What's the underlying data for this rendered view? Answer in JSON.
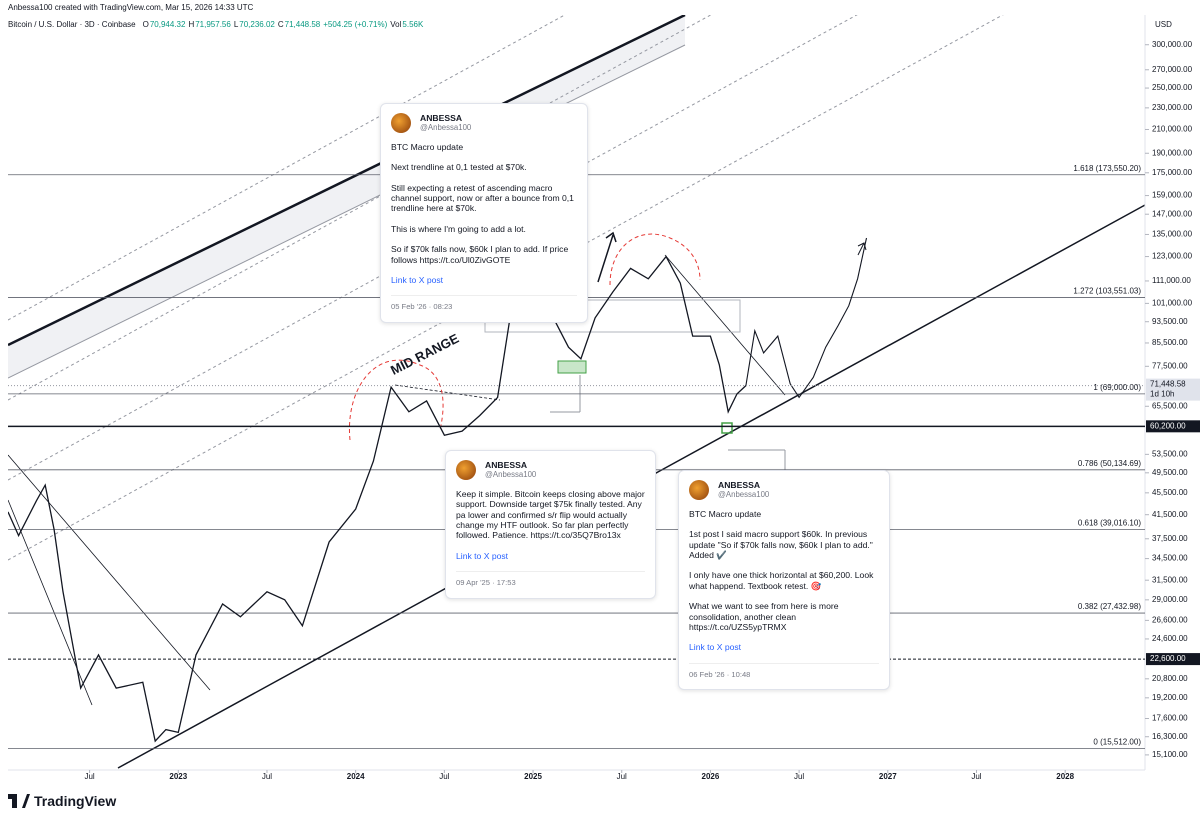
{
  "chart_data": {
    "type": "line",
    "author_line": "Anbessa100 created with TradingView.com, Mar 15, 2026 14:33 UTC",
    "symbol": "Bitcoin / U.S. Dollar · 3D · Coinbase",
    "ohlc": [
      "O",
      "70,944.32",
      "H",
      "71,957.56",
      "L",
      "70,236.02",
      "C",
      "71,448.58",
      "+504.25 (+0.71%)",
      "Vol",
      "5.56K"
    ],
    "currency": "USD",
    "annotation": "MID RANGE",
    "log_scale": true,
    "grid": false,
    "xlim": [
      2022.04,
      2028.45
    ],
    "ylim": [
      14170,
      340000
    ],
    "xticks": [
      {
        "value": 2022.5,
        "label": "Jul"
      },
      2023,
      {
        "value": 2023.5,
        "label": "Jul"
      },
      2024,
      {
        "value": 2024.5,
        "label": "Jul"
      },
      2025,
      {
        "value": 2025.5,
        "label": "Jul"
      },
      2026,
      {
        "value": 2026.5,
        "label": "Jul"
      },
      2027,
      {
        "value": 2027.5,
        "label": "Jul"
      },
      2028
    ],
    "yticks": [
      {
        "value": 300000,
        "label": "300,000.00"
      },
      {
        "value": 270000,
        "label": "270,000.00"
      },
      {
        "value": 250000,
        "label": "250,000.00"
      },
      {
        "value": 230000,
        "label": "230,000.00"
      },
      {
        "value": 210000,
        "label": "210,000.00"
      },
      {
        "value": 190000,
        "label": "190,000.00"
      },
      {
        "value": 175000,
        "label": "175,000.00"
      },
      {
        "value": 159000,
        "label": "159,000.00"
      },
      {
        "value": 147000,
        "label": "147,000.00"
      },
      {
        "value": 135000,
        "label": "135,000.00"
      },
      {
        "value": 123000,
        "label": "123,000.00"
      },
      {
        "value": 111000,
        "label": "111,000.00"
      },
      {
        "value": 101000,
        "label": "101,000.00"
      },
      {
        "value": 93500,
        "label": "93,500.00"
      },
      {
        "value": 85500,
        "label": "85,500.00"
      },
      {
        "value": 77500,
        "label": "77,500.00"
      },
      {
        "value": 65500,
        "label": "65,500.00"
      },
      {
        "value": 53500,
        "label": "53,500.00"
      },
      {
        "value": 49500,
        "label": "49,500.00"
      },
      {
        "value": 45500,
        "label": "45,500.00"
      },
      {
        "value": 41500,
        "label": "41,500.00"
      },
      {
        "value": 37500,
        "label": "37,500.00"
      },
      {
        "value": 34500,
        "label": "34,500.00"
      },
      {
        "value": 31500,
        "label": "31,500.00"
      },
      {
        "value": 29000,
        "label": "29,000.00"
      },
      {
        "value": 26600,
        "label": "26,600.00"
      },
      {
        "value": 24600,
        "label": "24,600.00"
      },
      {
        "value": 20800,
        "label": "20,800.00"
      },
      {
        "value": 19200,
        "label": "19,200.00"
      },
      {
        "value": 17600,
        "label": "17,600.00"
      },
      {
        "value": 16300,
        "label": "16,300.00"
      },
      {
        "value": 15100,
        "label": "15,100.00"
      }
    ],
    "series": [
      {
        "color": "#131722",
        "x": [
          2022.04,
          2022.1,
          2022.2,
          2022.25,
          2022.3,
          2022.35,
          2022.45,
          2022.55,
          2022.65,
          2022.8,
          2022.87,
          2022.93,
          2023.0,
          2023.1,
          2023.25,
          2023.35,
          2023.5,
          2023.6,
          2023.7,
          2023.85,
          2024.0,
          2024.1,
          2024.2,
          2024.3,
          2024.4,
          2024.5,
          2024.6,
          2024.7,
          2024.8,
          2024.87,
          2025.0,
          2025.1,
          2025.2,
          2025.27,
          2025.35,
          2025.45,
          2025.55,
          2025.65,
          2025.75,
          2025.83,
          2025.9,
          2026.0,
          2026.05,
          2026.1,
          2026.15,
          2026.2
        ],
        "values": [
          42000,
          38000,
          44000,
          47000,
          39000,
          30000,
          20000,
          23000,
          20000,
          20500,
          16000,
          16800,
          16600,
          23000,
          28500,
          27000,
          30000,
          29000,
          26000,
          37000,
          42500,
          52000,
          71000,
          64000,
          67000,
          58000,
          59000,
          63000,
          68000,
          95000,
          94000,
          97000,
          84000,
          80000,
          95000,
          106000,
          117000,
          112000,
          123000,
          110000,
          88000,
          88000,
          78000,
          64000,
          69000,
          71448.58
        ]
      },
      {
        "color": "#131722",
        "x": [
          2026.2,
          2026.25,
          2026.3,
          2026.38,
          2026.45,
          2026.5,
          2026.58,
          2026.65,
          2026.72,
          2026.78,
          2026.83,
          2026.88
        ],
        "values": [
          71448.58,
          90000,
          82000,
          88000,
          72000,
          68000,
          74000,
          84000,
          92000,
          100000,
          112000,
          133000
        ]
      }
    ],
    "last_price": {
      "value": 71448.58,
      "label": "71,448.58"
    },
    "countdown": "1d 10h",
    "levels": [
      {
        "value": 60200,
        "label": "60,200.00"
      },
      {
        "value": 22600,
        "label": "22,600.00"
      }
    ],
    "fib_levels": [
      {
        "value": 173550.2,
        "label": "1.618 (173,550.20)"
      },
      {
        "value": 103551.03,
        "label": "1.272 (103,551.03)"
      },
      {
        "value": 69000,
        "label": "1 (69,000.00)"
      },
      {
        "value": 50134.69,
        "label": "0.786 (50,134.69)"
      },
      {
        "value": 39016.1,
        "label": "0.618 (39,016.10)"
      },
      {
        "value": 27432.98,
        "label": "0.382 (27,432.98)"
      },
      {
        "value": 15512,
        "label": "0 (15,512.00)"
      }
    ]
  },
  "cards": [
    {
      "name": "ANBESSA",
      "handle": "@Anbessa100",
      "paragraphs": [
        "BTC Macro update",
        "Next trendline at 0,1 tested at $70k.",
        "Still expecting a retest of ascending macro channel support, now or after a bounce from 0,1 trendline here at $70k.",
        "This is where I'm going to add a lot.",
        "So if $70k falls now, $60k I plan to add. If price follows https://t.co/Ul0ZivGOTE"
      ],
      "link": "Link to X post",
      "date": "05 Feb '26 · 08:23"
    },
    {
      "name": "ANBESSA",
      "handle": "@Anbessa100",
      "paragraphs": [
        "Keep it simple. Bitcoin keeps closing above major support. Downside target $75k finally tested. Any pa lower and confirmed s/r flip would actually change my HTF outlook. So far plan perfectly followed. Patience. https://t.co/35Q7Bro13x"
      ],
      "link": "Link to X post",
      "date": "09 Apr '25 · 17:53"
    },
    {
      "name": "ANBESSA",
      "handle": "@Anbessa100",
      "paragraphs": [
        "BTC Macro update",
        "1st post I said macro support $60k. In previous update \"So if $70k falls now, $60k I plan to add.\" Added ✔️",
        "I only have one thick horizontal at $60,200. Look what happend. Textbook retest. 🎯",
        "What we want to see from here is more consolidation, another clean https://t.co/UZS5ypTRMX"
      ],
      "link": "Link to X post",
      "date": "06 Feb '26 · 10:48"
    }
  ],
  "footer": "TradingView"
}
